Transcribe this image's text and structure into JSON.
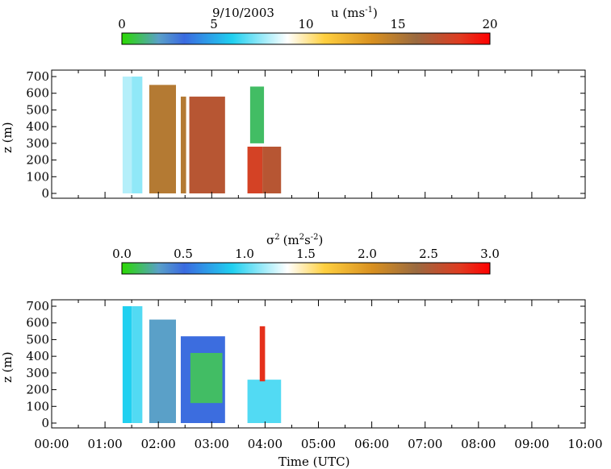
{
  "chart_data": [
    {
      "type": "heatmap",
      "title": "9/10/2003",
      "colorbar": {
        "label": "u (ms",
        "label_exponent": "-1",
        "label_close": ")",
        "range": [
          0,
          20
        ],
        "ticks": [
          "0",
          "5",
          "10",
          "15",
          "20"
        ]
      },
      "ylabel": "z (m)",
      "ylim": [
        0,
        700
      ],
      "yticks": [
        "0",
        "100",
        "200",
        "300",
        "400",
        "500",
        "600",
        "700"
      ],
      "xlim_hours": [
        0,
        10
      ],
      "grid": false,
      "blocks": [
        {
          "t0": 1.33,
          "t1": 1.5,
          "z0": 0,
          "z1": 700,
          "value": 8
        },
        {
          "t0": 1.5,
          "t1": 1.7,
          "z0": 0,
          "z1": 700,
          "value": 7.5
        },
        {
          "t0": 1.83,
          "t1": 2.33,
          "z0": 0,
          "z1": 650,
          "value": 15
        },
        {
          "t0": 2.42,
          "t1": 2.52,
          "z0": 0,
          "z1": 580,
          "value": 15
        },
        {
          "t0": 2.58,
          "t1": 3.25,
          "z0": 0,
          "z1": 580,
          "value": 17
        },
        {
          "t0": 3.67,
          "t1": 3.95,
          "z0": 0,
          "z1": 280,
          "value": 18
        },
        {
          "t0": 3.95,
          "t1": 4.3,
          "z0": 0,
          "z1": 280,
          "value": 17
        },
        {
          "t0": 3.72,
          "t1": 3.98,
          "z0": 300,
          "z1": 640,
          "value": 1
        }
      ]
    },
    {
      "type": "heatmap",
      "colorbar": {
        "label_sym": "σ",
        "label_sym_exp": "2",
        "label": "(m",
        "label_exponent": "2",
        "label_mid": "s",
        "label_exponent2": "-2",
        "label_close": ")",
        "range": [
          0,
          3
        ],
        "ticks": [
          "0.0",
          "0.5",
          "1.0",
          "1.5",
          "2.0",
          "2.5",
          "3.0"
        ]
      },
      "ylabel": "z (m)",
      "ylim": [
        0,
        700
      ],
      "yticks": [
        "0",
        "100",
        "200",
        "300",
        "400",
        "500",
        "600",
        "700"
      ],
      "xlabel": "Time (UTC)",
      "xticks": [
        "00:00",
        "01:00",
        "02:00",
        "03:00",
        "04:00",
        "05:00",
        "06:00",
        "07:00",
        "08:00",
        "09:00",
        "10:00"
      ],
      "xlim_hours": [
        0,
        10
      ],
      "grid": false,
      "blocks": [
        {
          "t0": 1.33,
          "t1": 1.5,
          "z0": 0,
          "z1": 700,
          "value": 0.9
        },
        {
          "t0": 1.5,
          "t1": 1.7,
          "z0": 0,
          "z1": 700,
          "value": 1.0
        },
        {
          "t0": 1.83,
          "t1": 2.33,
          "z0": 0,
          "z1": 620,
          "value": 0.3
        },
        {
          "t0": 2.42,
          "t1": 3.25,
          "z0": 0,
          "z1": 520,
          "value": 0.5
        },
        {
          "t0": 2.6,
          "t1": 3.2,
          "z0": 120,
          "z1": 420,
          "value": 0.15
        },
        {
          "t0": 3.67,
          "t1": 4.3,
          "z0": 0,
          "z1": 260,
          "value": 1.0
        },
        {
          "t0": 3.9,
          "t1": 4.0,
          "z0": 250,
          "z1": 580,
          "value": 2.8
        }
      ]
    }
  ]
}
